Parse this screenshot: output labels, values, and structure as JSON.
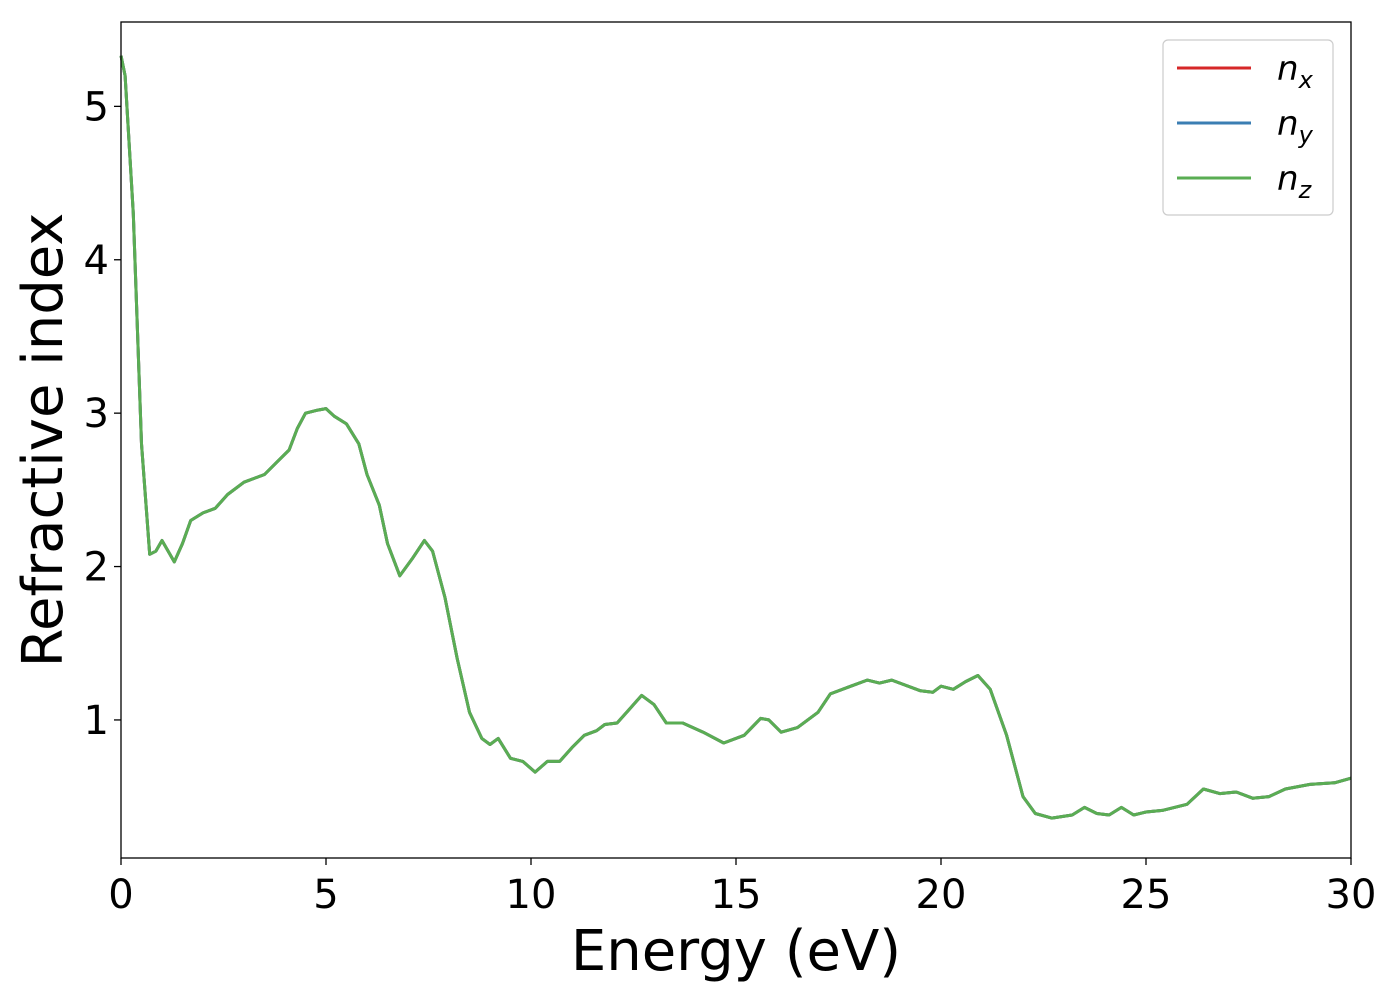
{
  "chart_data": {
    "type": "line",
    "title": "",
    "xlabel": "Energy (eV)",
    "ylabel": "Refractive index",
    "xlim": [
      0,
      30
    ],
    "ylim": [
      0.1,
      5.55
    ],
    "xticks": [
      0,
      5,
      10,
      15,
      20,
      25,
      30
    ],
    "yticks": [
      1,
      2,
      3,
      4,
      5
    ],
    "grid": false,
    "legend_position": "top-right",
    "series": [
      {
        "name": "n_x",
        "label_base": "n",
        "label_sub": "x",
        "color": "#d62728",
        "points": [
          [
            0,
            5.33
          ],
          [
            0.1,
            5.2
          ],
          [
            0.3,
            4.3
          ],
          [
            0.5,
            2.8
          ],
          [
            0.7,
            2.08
          ],
          [
            0.85,
            2.1
          ],
          [
            1.0,
            2.17
          ],
          [
            1.15,
            2.1
          ],
          [
            1.3,
            2.03
          ],
          [
            1.5,
            2.15
          ],
          [
            1.7,
            2.3
          ],
          [
            2.0,
            2.35
          ],
          [
            2.3,
            2.38
          ],
          [
            2.6,
            2.47
          ],
          [
            3.0,
            2.55
          ],
          [
            3.5,
            2.6
          ],
          [
            3.8,
            2.68
          ],
          [
            4.1,
            2.76
          ],
          [
            4.3,
            2.9
          ],
          [
            4.5,
            3.0
          ],
          [
            4.8,
            3.02
          ],
          [
            5.0,
            3.03
          ],
          [
            5.2,
            2.98
          ],
          [
            5.5,
            2.93
          ],
          [
            5.8,
            2.8
          ],
          [
            6.0,
            2.6
          ],
          [
            6.3,
            2.4
          ],
          [
            6.5,
            2.15
          ],
          [
            6.8,
            1.94
          ],
          [
            7.1,
            2.05
          ],
          [
            7.4,
            2.17
          ],
          [
            7.6,
            2.1
          ],
          [
            7.9,
            1.8
          ],
          [
            8.2,
            1.4
          ],
          [
            8.5,
            1.05
          ],
          [
            8.8,
            0.88
          ],
          [
            9.0,
            0.84
          ],
          [
            9.2,
            0.88
          ],
          [
            9.5,
            0.75
          ],
          [
            9.8,
            0.73
          ],
          [
            10.1,
            0.66
          ],
          [
            10.4,
            0.73
          ],
          [
            10.7,
            0.73
          ],
          [
            11.0,
            0.82
          ],
          [
            11.3,
            0.9
          ],
          [
            11.6,
            0.93
          ],
          [
            11.8,
            0.97
          ],
          [
            12.1,
            0.98
          ],
          [
            12.4,
            1.07
          ],
          [
            12.7,
            1.16
          ],
          [
            13.0,
            1.1
          ],
          [
            13.3,
            0.98
          ],
          [
            13.7,
            0.98
          ],
          [
            14.2,
            0.92
          ],
          [
            14.7,
            0.85
          ],
          [
            15.2,
            0.9
          ],
          [
            15.6,
            1.01
          ],
          [
            15.8,
            1.0
          ],
          [
            16.1,
            0.92
          ],
          [
            16.5,
            0.95
          ],
          [
            17.0,
            1.05
          ],
          [
            17.3,
            1.17
          ],
          [
            17.8,
            1.22
          ],
          [
            18.2,
            1.26
          ],
          [
            18.5,
            1.24
          ],
          [
            18.8,
            1.26
          ],
          [
            19.5,
            1.19
          ],
          [
            19.8,
            1.18
          ],
          [
            20.0,
            1.22
          ],
          [
            20.3,
            1.2
          ],
          [
            20.6,
            1.25
          ],
          [
            20.9,
            1.29
          ],
          [
            21.2,
            1.2
          ],
          [
            21.6,
            0.9
          ],
          [
            22.0,
            0.5
          ],
          [
            22.3,
            0.39
          ],
          [
            22.7,
            0.36
          ],
          [
            23.2,
            0.38
          ],
          [
            23.5,
            0.43
          ],
          [
            23.8,
            0.39
          ],
          [
            24.1,
            0.38
          ],
          [
            24.4,
            0.43
          ],
          [
            24.7,
            0.38
          ],
          [
            25.0,
            0.4
          ],
          [
            25.4,
            0.41
          ],
          [
            26.0,
            0.45
          ],
          [
            26.4,
            0.55
          ],
          [
            26.8,
            0.52
          ],
          [
            27.2,
            0.53
          ],
          [
            27.6,
            0.49
          ],
          [
            28.0,
            0.5
          ],
          [
            28.4,
            0.55
          ],
          [
            29.0,
            0.58
          ],
          [
            29.6,
            0.59
          ],
          [
            30.0,
            0.62
          ]
        ]
      },
      {
        "name": "n_y",
        "label_base": "n",
        "label_sub": "y",
        "color": "#3b7eb3",
        "points": [
          [
            0,
            5.33
          ],
          [
            0.1,
            5.2
          ],
          [
            0.3,
            4.3
          ],
          [
            0.5,
            2.8
          ],
          [
            0.7,
            2.08
          ],
          [
            0.85,
            2.1
          ],
          [
            1.0,
            2.17
          ],
          [
            1.15,
            2.1
          ],
          [
            1.3,
            2.03
          ],
          [
            1.5,
            2.15
          ],
          [
            1.7,
            2.3
          ],
          [
            2.0,
            2.35
          ],
          [
            2.3,
            2.38
          ],
          [
            2.6,
            2.47
          ],
          [
            3.0,
            2.55
          ],
          [
            3.5,
            2.6
          ],
          [
            3.8,
            2.68
          ],
          [
            4.1,
            2.76
          ],
          [
            4.3,
            2.9
          ],
          [
            4.5,
            3.0
          ],
          [
            4.8,
            3.02
          ],
          [
            5.0,
            3.03
          ],
          [
            5.2,
            2.98
          ],
          [
            5.5,
            2.93
          ],
          [
            5.8,
            2.8
          ],
          [
            6.0,
            2.6
          ],
          [
            6.3,
            2.4
          ],
          [
            6.5,
            2.15
          ],
          [
            6.8,
            1.94
          ],
          [
            7.1,
            2.05
          ],
          [
            7.4,
            2.17
          ],
          [
            7.6,
            2.1
          ],
          [
            7.9,
            1.8
          ],
          [
            8.2,
            1.4
          ],
          [
            8.5,
            1.05
          ],
          [
            8.8,
            0.88
          ],
          [
            9.0,
            0.84
          ],
          [
            9.2,
            0.88
          ],
          [
            9.5,
            0.75
          ],
          [
            9.8,
            0.73
          ],
          [
            10.1,
            0.66
          ],
          [
            10.4,
            0.73
          ],
          [
            10.7,
            0.73
          ],
          [
            11.0,
            0.82
          ],
          [
            11.3,
            0.9
          ],
          [
            11.6,
            0.93
          ],
          [
            11.8,
            0.97
          ],
          [
            12.1,
            0.98
          ],
          [
            12.4,
            1.07
          ],
          [
            12.7,
            1.16
          ],
          [
            13.0,
            1.1
          ],
          [
            13.3,
            0.98
          ],
          [
            13.7,
            0.98
          ],
          [
            14.2,
            0.92
          ],
          [
            14.7,
            0.85
          ],
          [
            15.2,
            0.9
          ],
          [
            15.6,
            1.01
          ],
          [
            15.8,
            1.0
          ],
          [
            16.1,
            0.92
          ],
          [
            16.5,
            0.95
          ],
          [
            17.0,
            1.05
          ],
          [
            17.3,
            1.17
          ],
          [
            17.8,
            1.22
          ],
          [
            18.2,
            1.26
          ],
          [
            18.5,
            1.24
          ],
          [
            18.8,
            1.26
          ],
          [
            19.5,
            1.19
          ],
          [
            19.8,
            1.18
          ],
          [
            20.0,
            1.22
          ],
          [
            20.3,
            1.2
          ],
          [
            20.6,
            1.25
          ],
          [
            20.9,
            1.29
          ],
          [
            21.2,
            1.2
          ],
          [
            21.6,
            0.9
          ],
          [
            22.0,
            0.5
          ],
          [
            22.3,
            0.39
          ],
          [
            22.7,
            0.36
          ],
          [
            23.2,
            0.38
          ],
          [
            23.5,
            0.43
          ],
          [
            23.8,
            0.39
          ],
          [
            24.1,
            0.38
          ],
          [
            24.4,
            0.43
          ],
          [
            24.7,
            0.38
          ],
          [
            25.0,
            0.4
          ],
          [
            25.4,
            0.41
          ],
          [
            26.0,
            0.45
          ],
          [
            26.4,
            0.55
          ],
          [
            26.8,
            0.52
          ],
          [
            27.2,
            0.53
          ],
          [
            27.6,
            0.49
          ],
          [
            28.0,
            0.5
          ],
          [
            28.4,
            0.55
          ],
          [
            29.0,
            0.58
          ],
          [
            29.6,
            0.59
          ],
          [
            30.0,
            0.62
          ]
        ]
      },
      {
        "name": "n_z",
        "label_base": "n",
        "label_sub": "z",
        "color": "#5aad53",
        "points": [
          [
            0,
            5.33
          ],
          [
            0.1,
            5.2
          ],
          [
            0.3,
            4.3
          ],
          [
            0.5,
            2.8
          ],
          [
            0.7,
            2.08
          ],
          [
            0.85,
            2.1
          ],
          [
            1.0,
            2.17
          ],
          [
            1.15,
            2.1
          ],
          [
            1.3,
            2.03
          ],
          [
            1.5,
            2.15
          ],
          [
            1.7,
            2.3
          ],
          [
            2.0,
            2.35
          ],
          [
            2.3,
            2.38
          ],
          [
            2.6,
            2.47
          ],
          [
            3.0,
            2.55
          ],
          [
            3.5,
            2.6
          ],
          [
            3.8,
            2.68
          ],
          [
            4.1,
            2.76
          ],
          [
            4.3,
            2.9
          ],
          [
            4.5,
            3.0
          ],
          [
            4.8,
            3.02
          ],
          [
            5.0,
            3.03
          ],
          [
            5.2,
            2.98
          ],
          [
            5.5,
            2.93
          ],
          [
            5.8,
            2.8
          ],
          [
            6.0,
            2.6
          ],
          [
            6.3,
            2.4
          ],
          [
            6.5,
            2.15
          ],
          [
            6.8,
            1.94
          ],
          [
            7.1,
            2.05
          ],
          [
            7.4,
            2.17
          ],
          [
            7.6,
            2.1
          ],
          [
            7.9,
            1.8
          ],
          [
            8.2,
            1.4
          ],
          [
            8.5,
            1.05
          ],
          [
            8.8,
            0.88
          ],
          [
            9.0,
            0.84
          ],
          [
            9.2,
            0.88
          ],
          [
            9.5,
            0.75
          ],
          [
            9.8,
            0.73
          ],
          [
            10.1,
            0.66
          ],
          [
            10.4,
            0.73
          ],
          [
            10.7,
            0.73
          ],
          [
            11.0,
            0.82
          ],
          [
            11.3,
            0.9
          ],
          [
            11.6,
            0.93
          ],
          [
            11.8,
            0.97
          ],
          [
            12.1,
            0.98
          ],
          [
            12.4,
            1.07
          ],
          [
            12.7,
            1.16
          ],
          [
            13.0,
            1.1
          ],
          [
            13.3,
            0.98
          ],
          [
            13.7,
            0.98
          ],
          [
            14.2,
            0.92
          ],
          [
            14.7,
            0.85
          ],
          [
            15.2,
            0.9
          ],
          [
            15.6,
            1.01
          ],
          [
            15.8,
            1.0
          ],
          [
            16.1,
            0.92
          ],
          [
            16.5,
            0.95
          ],
          [
            17.0,
            1.05
          ],
          [
            17.3,
            1.17
          ],
          [
            17.8,
            1.22
          ],
          [
            18.2,
            1.26
          ],
          [
            18.5,
            1.24
          ],
          [
            18.8,
            1.26
          ],
          [
            19.5,
            1.19
          ],
          [
            19.8,
            1.18
          ],
          [
            20.0,
            1.22
          ],
          [
            20.3,
            1.2
          ],
          [
            20.6,
            1.25
          ],
          [
            20.9,
            1.29
          ],
          [
            21.2,
            1.2
          ],
          [
            21.6,
            0.9
          ],
          [
            22.0,
            0.5
          ],
          [
            22.3,
            0.39
          ],
          [
            22.7,
            0.36
          ],
          [
            23.2,
            0.38
          ],
          [
            23.5,
            0.43
          ],
          [
            23.8,
            0.39
          ],
          [
            24.1,
            0.38
          ],
          [
            24.4,
            0.43
          ],
          [
            24.7,
            0.38
          ],
          [
            25.0,
            0.4
          ],
          [
            25.4,
            0.41
          ],
          [
            26.0,
            0.45
          ],
          [
            26.4,
            0.55
          ],
          [
            26.8,
            0.52
          ],
          [
            27.2,
            0.53
          ],
          [
            27.6,
            0.49
          ],
          [
            28.0,
            0.5
          ],
          [
            28.4,
            0.55
          ],
          [
            29.0,
            0.58
          ],
          [
            29.6,
            0.59
          ],
          [
            30.0,
            0.62
          ]
        ]
      }
    ]
  }
}
